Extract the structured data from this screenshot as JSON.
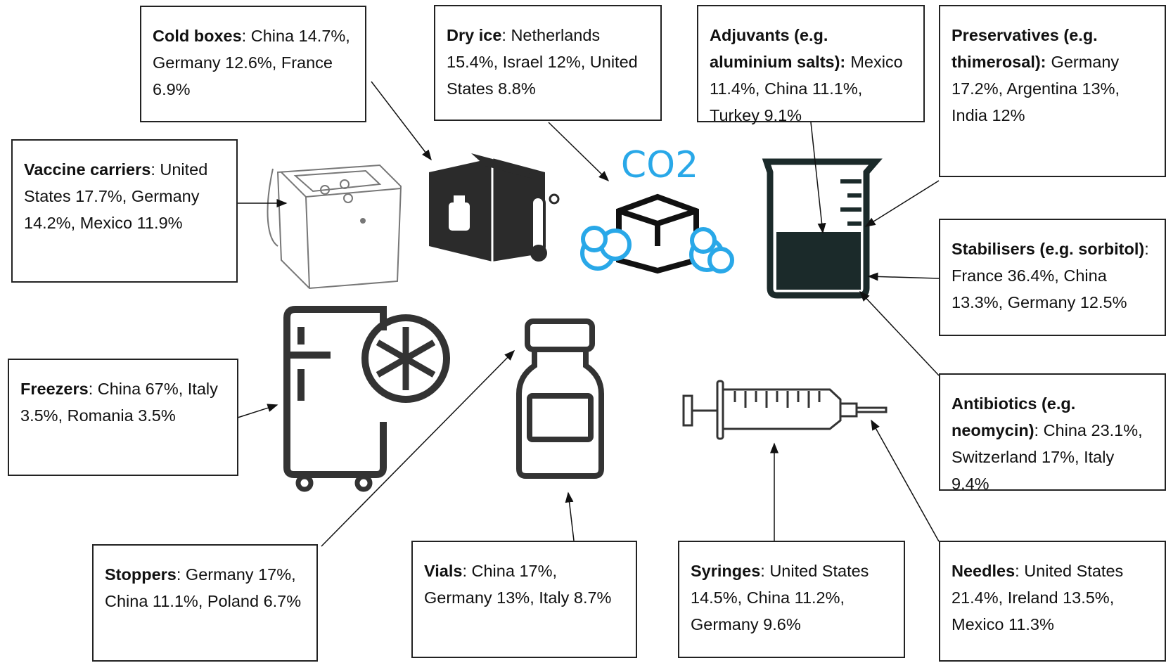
{
  "boxes": [
    {
      "label": "Cold boxes",
      "text": ": China 14.7%, Germany 12.6%, France 6.9%"
    },
    {
      "label": "Dry ice",
      "text": ": Netherlands 15.4%, Israel 12%, United States 8.8%"
    },
    {
      "label": "Adjuvants (e.g. aluminium salts):",
      "text": "Mexico 11.4%, China 11.1%, Turkey 9.1%"
    },
    {
      "label": "Preservatives (e.g. thimerosal):",
      "text": "Germany 17.2%, Argentina 13%, India 12%"
    },
    {
      "label": "Vaccine carriers",
      "text": ": United States 17.7%, Germany 14.2%, Mexico 11.9%"
    },
    {
      "label": "Stabilisers (e.g. sorbitol)",
      "text": ": France 36.4%, China 13.3%, Germany 12.5%"
    },
    {
      "label": "Freezers",
      "text": ": China 67%, Italy 3.5%, Romania 3.5%"
    },
    {
      "label": "Antibiotics (e.g. neomycin)",
      "text": ": China 23.1%, Switzerland 17%, Italy 9.4%"
    },
    {
      "label": "Stoppers",
      "text": ": Germany 17%, China 11.1%, Poland 6.7%"
    },
    {
      "label": "Vials",
      "text": ": China 17%, Germany 13%, Italy 8.7%"
    },
    {
      "label": "Syringes",
      "text": ": United States 14.5%, China 11.2%, Germany 9.6%"
    },
    {
      "label": "Needles",
      "text": ": United States 21.4%, Ireland 13.5%, Mexico 11.3%"
    }
  ],
  "icons": {
    "co2_label": "CO2"
  }
}
